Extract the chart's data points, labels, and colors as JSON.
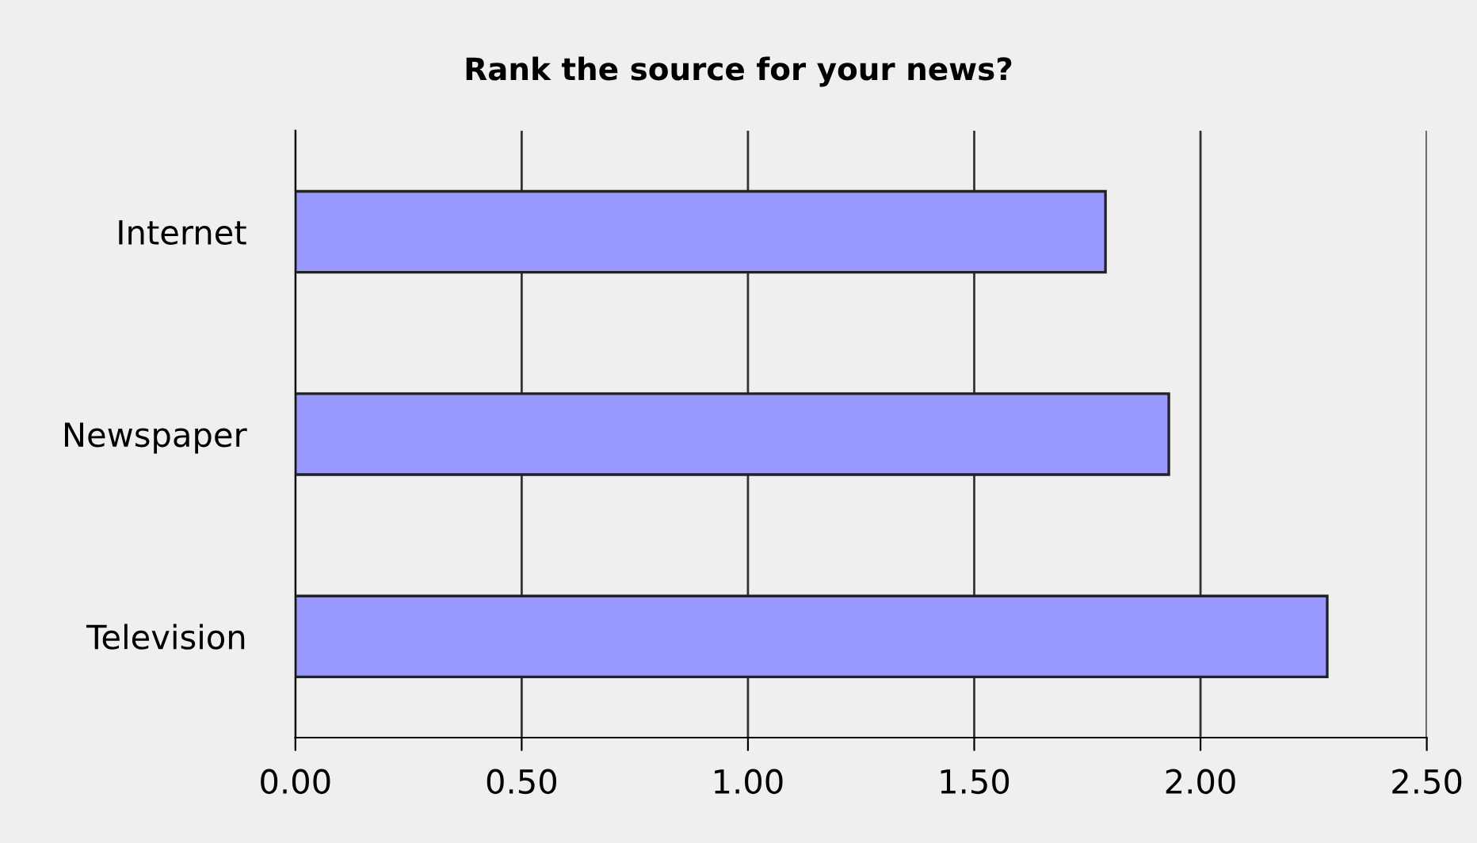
{
  "chart_data": {
    "type": "bar",
    "orientation": "horizontal",
    "title": "Rank the source for your news?",
    "categories": [
      "Internet",
      "Newspaper",
      "Television"
    ],
    "values": [
      1.79,
      1.93,
      2.28
    ],
    "color": "#9999ff",
    "xlim": [
      0,
      2.5
    ],
    "xticks": [
      {
        "value": 0,
        "label": "0.00"
      },
      {
        "value": 0.5,
        "label": "0.50"
      },
      {
        "value": 1,
        "label": "1.00"
      },
      {
        "value": 1.5,
        "label": "1.50"
      },
      {
        "value": 2,
        "label": "2.00"
      },
      {
        "value": 2.5,
        "label": "2.50"
      }
    ],
    "grid": "x",
    "legend": false
  }
}
